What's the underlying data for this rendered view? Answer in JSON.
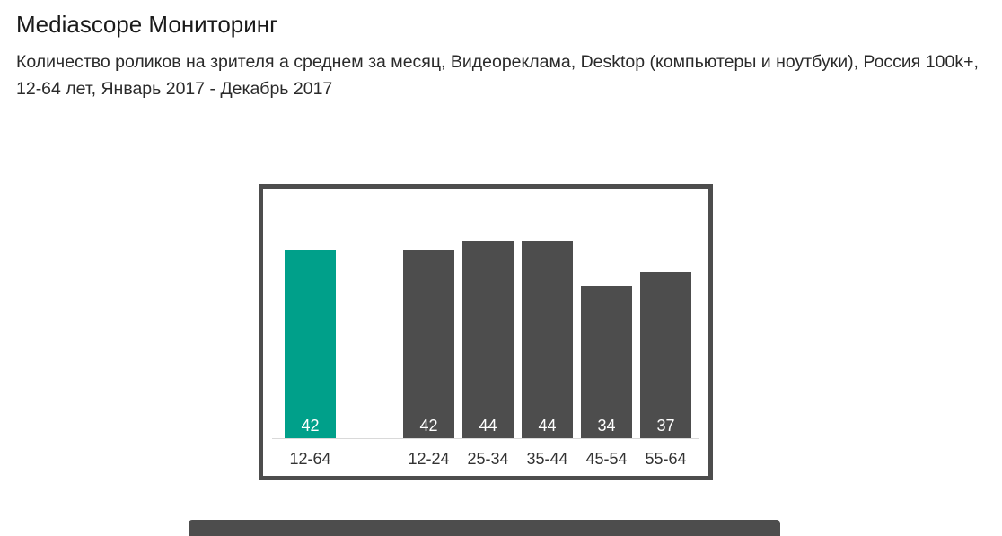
{
  "header": {
    "title": "Mediascope Мониторинг",
    "subtitle": "Количество роликов на зрителя а среднем за месяц, Видеореклама, Desktop (компьютеры и ноутбуки), Россия 100k+, 12-64 лет, Январь 2017 - Декабрь 2017"
  },
  "colors": {
    "highlight": "#00a08a",
    "bar": "#4d4d4d",
    "frame": "#4d4d4d",
    "value_text": "#ffffff",
    "tick_text": "#333333"
  },
  "chart_data": {
    "type": "bar",
    "categories": [
      "12-64",
      "12-24",
      "25-34",
      "35-44",
      "45-54",
      "55-64"
    ],
    "values": [
      42,
      42,
      44,
      44,
      34,
      37
    ],
    "highlight_category": "12-64",
    "data_labels": true,
    "grid": false,
    "legend": "none",
    "ylim": [
      0,
      50
    ]
  }
}
